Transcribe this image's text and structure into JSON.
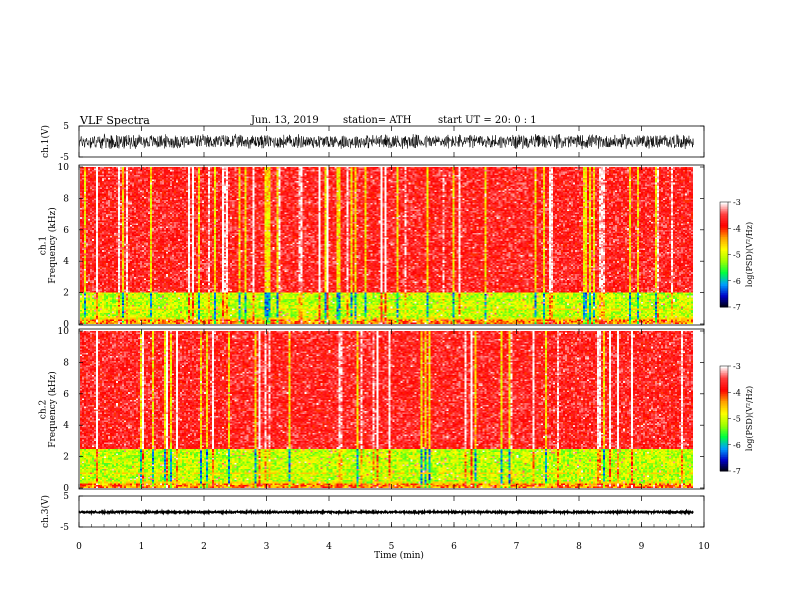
{
  "header": {
    "title": "VLF  Spectra",
    "date": "Jun. 13, 2019",
    "station": "station= ATH",
    "start_ut": "start  UT  =    20: 0   : 1"
  },
  "chart_data": [
    {
      "type": "line",
      "panel": "ch1-waveform",
      "ylabel": "ch.1(V)",
      "ylim": [
        -5,
        5
      ],
      "yticks": [
        "5",
        "-5"
      ],
      "x_range_min": [
        0,
        9.83
      ],
      "amplitude_approx": 2.5,
      "color": "#000000"
    },
    {
      "type": "heatmap",
      "panel": "ch1-spectrogram",
      "ylabel": "ch.1\nFrequency  (kHz)",
      "ylim": [
        0,
        10
      ],
      "yticks": [
        "0",
        "2",
        "4",
        "6",
        "8",
        "10"
      ],
      "x_range_min": [
        0,
        9.83
      ],
      "dominant_band_khz": [
        [
          0,
          2,
          "green-yellow"
        ],
        [
          2,
          10,
          "red"
        ]
      ],
      "colorbar": {
        "label": "log(PSD)(V²/Hz)",
        "range": [
          -7,
          -3
        ],
        "ticks": [
          "-3",
          "-4",
          "-5",
          "-6",
          "-7"
        ]
      }
    },
    {
      "type": "heatmap",
      "panel": "ch2-spectrogram",
      "ylabel": "ch.2\nFrequency  (kHz)",
      "ylim": [
        0,
        10
      ],
      "yticks": [
        "0",
        "2",
        "4",
        "6",
        "8",
        "10"
      ],
      "x_range_min": [
        0,
        9.83
      ],
      "dominant_band_khz": [
        [
          0,
          2.5,
          "green-yellow"
        ],
        [
          2.5,
          10,
          "red"
        ]
      ],
      "colorbar": {
        "label": "log(PSD)(V²/Hz)",
        "range": [
          -7,
          -3
        ],
        "ticks": [
          "-3",
          "-4",
          "-5",
          "-6",
          "-7"
        ]
      }
    },
    {
      "type": "line",
      "panel": "ch3-waveform",
      "ylabel": "ch.3(V)",
      "ylim": [
        -5,
        5
      ],
      "yticks": [
        "5",
        "-5"
      ],
      "x_range_min": [
        0,
        9.83
      ],
      "amplitude_approx": 0.3,
      "offset_approx": -0.2,
      "color": "#000000"
    }
  ],
  "xaxis": {
    "label": "Time  (min)",
    "range": [
      0,
      10
    ],
    "ticks": [
      "0",
      "1",
      "2",
      "3",
      "4",
      "5",
      "6",
      "7",
      "8",
      "9",
      "10"
    ]
  },
  "colors": {
    "colormap": [
      "#000000",
      "#0000c8",
      "#00a0ff",
      "#00ff40",
      "#a0ff00",
      "#ffff00",
      "#ffa000",
      "#ff0000",
      "#ff3c3c",
      "#ffffff"
    ]
  }
}
